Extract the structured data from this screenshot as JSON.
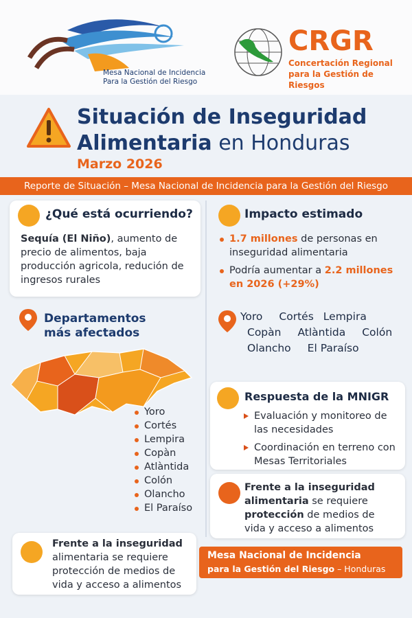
{
  "header": {
    "left_logo_line1": "Mesa Nacional de Incidencia",
    "left_logo_line2": "Para la Gestión del Riesgo",
    "right_logo_title": "CRGR",
    "right_logo_line1": "Concertación Regional",
    "right_logo_line2": "para la Gestión de Riesgos"
  },
  "title": {
    "line1": "Situación de Inseguridad",
    "line2": [
      {
        "text": "Alimentaria",
        "bold": true
      },
      {
        "text": " en Honduras",
        "bold": false
      }
    ],
    "date": "Marzo 2026"
  },
  "banner": "Reporte de Situación – Mesa Nacional de Incidencia para la Gestión del Riesgo",
  "what": {
    "heading": "¿Qué está ocurriendo?",
    "body": [
      {
        "text": "Sequía (El Niño)",
        "bold": true
      },
      {
        "text": ", aumento de precio de alimentos, baja producción agricola, redución de ingresos rurales",
        "bold": false
      }
    ]
  },
  "impact": {
    "heading": "Impacto estimado",
    "items": [
      [
        {
          "text": "1.7 millones",
          "bold": true
        },
        {
          "text": " de personas en inseguridad alimentaria",
          "bold": false
        }
      ],
      [
        {
          "text": "Podría aumentar a ",
          "bold": false
        },
        {
          "text": "2.2 millones en 2026",
          "bold": true
        },
        {
          "text": " (+29%)",
          "bold": true
        }
      ]
    ]
  },
  "departments": {
    "heading": "Departamentos más afectados",
    "list": [
      "Yoro",
      "Cortés",
      "Lempira",
      "Copàn",
      "Atlàntida",
      "Colón",
      "Olancho",
      "El Paraíso"
    ]
  },
  "departments_grid": [
    "Yoro",
    "Cortés",
    "Lempira",
    "Copàn",
    "Atlàntida",
    "Colón",
    "Olancho",
    "El Paraíso"
  ],
  "response": {
    "heading": "Respuesta de la MNIGR",
    "items": [
      "Evaluación y monitoreo de las necesidades",
      "Coordinación en terreno con Mesas Territoriales"
    ]
  },
  "callout_right": [
    {
      "text": "Frente a la inseguridad alimentaria",
      "bold": true
    },
    {
      "text": " se requiere ",
      "bold": false
    },
    {
      "text": "protección",
      "bold": true
    },
    {
      "text": " de medios de vida y acceso a alimentos",
      "bold": false
    }
  ],
  "callout_left": [
    {
      "text": "Frente a la inseguridad",
      "bold": true
    },
    {
      "text": " alimentaria se requiere protección de medios de vida y acceso a alimentos",
      "bold": false
    }
  ],
  "footer": {
    "line1": "Mesa Nacional de Incidencia",
    "line2": "para la Gestión del Riesgo",
    "line3": " – Honduras"
  }
}
